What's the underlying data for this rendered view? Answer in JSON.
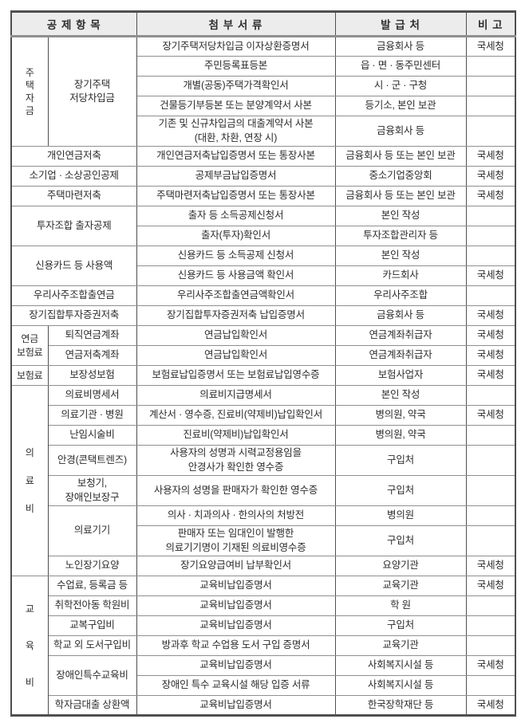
{
  "table": {
    "headers": {
      "deduction_items": "공 제 항 목",
      "attached_documents": "첨 부 서 류",
      "issuing_office": "발 급 처",
      "note": "비  고"
    },
    "colors": {
      "header_bg": "#ececec",
      "border_dark": "#4f4f4f",
      "border_light": "#8f8f8f",
      "text": "#2d2d2d"
    },
    "rows": [
      {
        "cells": [
          {
            "t": "주택자금",
            "type": "gv",
            "rs": 5,
            "v": "housing"
          },
          {
            "t": "장기주택\n저당차입금",
            "type": "i",
            "rs": 5
          },
          {
            "t": "장기주택저당차입금 이자상환증명서",
            "type": "d"
          },
          {
            "t": "금융회사 등",
            "type": "s"
          },
          {
            "t": "국세청",
            "type": "n"
          }
        ]
      },
      {
        "cells": [
          {
            "t": "주민등록표등본",
            "type": "d"
          },
          {
            "t": "읍 · 면 · 동주민센터",
            "type": "s"
          },
          {
            "t": "",
            "type": "n"
          }
        ]
      },
      {
        "cells": [
          {
            "t": "개별(공동)주택가격확인서",
            "type": "d"
          },
          {
            "t": "시 · 군 · 구청",
            "type": "s"
          },
          {
            "t": "",
            "type": "n"
          }
        ]
      },
      {
        "cells": [
          {
            "t": "건물등기부등본 또는 분양계약서 사본",
            "type": "d"
          },
          {
            "t": "등기소, 본인 보관",
            "type": "s"
          },
          {
            "t": "",
            "type": "n"
          }
        ]
      },
      {
        "cells": [
          {
            "t": "기존 및 신규차입금의 대출계약서 사본\n(대환, 차환, 연장 시)",
            "type": "d"
          },
          {
            "t": "금융회사 등",
            "type": "s"
          },
          {
            "t": "",
            "type": "n"
          }
        ]
      },
      {
        "cells": [
          {
            "t": "개인연금저축",
            "type": "f"
          },
          {
            "t": "개인연금저축납입증명서 또는 통장사본",
            "type": "d"
          },
          {
            "t": "금융회사 등 또는 본인 보관",
            "type": "s"
          },
          {
            "t": "국세청",
            "type": "n"
          }
        ]
      },
      {
        "cells": [
          {
            "t": "소기업 · 소상공인공제",
            "type": "f"
          },
          {
            "t": "공제부금납입증명서",
            "type": "d"
          },
          {
            "t": "중소기업중앙회",
            "type": "s"
          },
          {
            "t": "국세청",
            "type": "n"
          }
        ]
      },
      {
        "cells": [
          {
            "t": "주택마련저축",
            "type": "f"
          },
          {
            "t": "주택마련저축납입증명서 또는 통장사본",
            "type": "d"
          },
          {
            "t": "금융회사 등 또는 본인 보관",
            "type": "s"
          },
          {
            "t": "국세청",
            "type": "n"
          }
        ]
      },
      {
        "cells": [
          {
            "t": "투자조합 출자공제",
            "type": "f",
            "rs": 2
          },
          {
            "t": "출자 등 소득공제신청서",
            "type": "d"
          },
          {
            "t": "본인 작성",
            "type": "s"
          },
          {
            "t": "",
            "type": "n"
          }
        ]
      },
      {
        "cells": [
          {
            "t": "출자(투자)확인서",
            "type": "d"
          },
          {
            "t": "투자조합관리자 등",
            "type": "s"
          },
          {
            "t": "",
            "type": "n"
          }
        ]
      },
      {
        "cells": [
          {
            "t": "신용카드 등 사용액",
            "type": "f",
            "rs": 2
          },
          {
            "t": "신용카드 등 소득공제 신청서",
            "type": "d"
          },
          {
            "t": "본인 작성",
            "type": "s"
          },
          {
            "t": "",
            "type": "n"
          }
        ]
      },
      {
        "cells": [
          {
            "t": "신용카드 등 사용금액 확인서",
            "type": "d"
          },
          {
            "t": "카드회사",
            "type": "s"
          },
          {
            "t": "국세청",
            "type": "n"
          }
        ]
      },
      {
        "cells": [
          {
            "t": "우리사주조합출연금",
            "type": "f"
          },
          {
            "t": "우리사주조합출연금액확인서",
            "type": "d"
          },
          {
            "t": "우리사주조합",
            "type": "s"
          },
          {
            "t": "",
            "type": "n"
          }
        ]
      },
      {
        "cells": [
          {
            "t": "장기집합투자증권저축",
            "type": "f"
          },
          {
            "t": "장기집합투자증권저축 납입증명서",
            "type": "d"
          },
          {
            "t": "금융회사 등",
            "type": "s"
          },
          {
            "t": "국세청",
            "type": "n"
          }
        ]
      },
      {
        "cells": [
          {
            "t": "연금\n보험료",
            "type": "g",
            "rs": 2
          },
          {
            "t": "퇴직연금계좌",
            "type": "i"
          },
          {
            "t": "연금납입확인서",
            "type": "d"
          },
          {
            "t": "연금계좌취급자",
            "type": "s"
          },
          {
            "t": "국세청",
            "type": "n"
          }
        ]
      },
      {
        "cells": [
          {
            "t": "연금저축계좌",
            "type": "i"
          },
          {
            "t": "연금납입확인서",
            "type": "d"
          },
          {
            "t": "연금계좌취급자",
            "type": "s"
          },
          {
            "t": "국세청",
            "type": "n"
          }
        ]
      },
      {
        "cells": [
          {
            "t": "보험료",
            "type": "g"
          },
          {
            "t": "보장성보험",
            "type": "i"
          },
          {
            "t": "보험료납입증명서 또는 보험료납입영수증",
            "type": "d"
          },
          {
            "t": "보험사업자",
            "type": "s"
          },
          {
            "t": "국세청",
            "type": "n"
          }
        ]
      },
      {
        "cells": [
          {
            "t": "의료비",
            "type": "gv",
            "rs": 8,
            "v": "medical"
          },
          {
            "t": "의료비명세서",
            "type": "i"
          },
          {
            "t": "의료비지급명세서",
            "type": "d"
          },
          {
            "t": "본인 작성",
            "type": "s"
          },
          {
            "t": "",
            "type": "n"
          }
        ]
      },
      {
        "cells": [
          {
            "t": "의료기관 · 병원",
            "type": "i"
          },
          {
            "t": "계산서 · 영수증, 진료비(약제비)납입확인서",
            "type": "d"
          },
          {
            "t": "병의원, 약국",
            "type": "s"
          },
          {
            "t": "국세청",
            "type": "n"
          }
        ]
      },
      {
        "cells": [
          {
            "t": "난임시술비",
            "type": "i"
          },
          {
            "t": "진료비(약제비)납입확인서",
            "type": "d"
          },
          {
            "t": "병의원, 약국",
            "type": "s"
          },
          {
            "t": "",
            "type": "n"
          }
        ]
      },
      {
        "cells": [
          {
            "t": "안경(콘택트렌즈)",
            "type": "i"
          },
          {
            "t": "사용자의 성명과 시력교정용임을\n안경사가 확인한 영수증",
            "type": "d"
          },
          {
            "t": "구입처",
            "type": "s"
          },
          {
            "t": "",
            "type": "n"
          }
        ]
      },
      {
        "cells": [
          {
            "t": "보청기,\n장애인보장구",
            "type": "i"
          },
          {
            "t": "사용자의 성명을 판매자가 확인한 영수증",
            "type": "d"
          },
          {
            "t": "구입처",
            "type": "s"
          },
          {
            "t": "",
            "type": "n"
          }
        ]
      },
      {
        "cells": [
          {
            "t": "의료기기",
            "type": "i",
            "rs": 2
          },
          {
            "t": "의사 · 치과의사 · 한의사의 처방전",
            "type": "d"
          },
          {
            "t": "병의원",
            "type": "s"
          },
          {
            "t": "",
            "type": "n"
          }
        ]
      },
      {
        "cells": [
          {
            "t": "판매자 또는 임대인이 발행한\n의료기기명이 기재된 의료비영수증",
            "type": "d"
          },
          {
            "t": "구입처",
            "type": "s"
          },
          {
            "t": "",
            "type": "n"
          }
        ]
      },
      {
        "cells": [
          {
            "t": "노인장기요양",
            "type": "i"
          },
          {
            "t": "장기요양급여비 납부확인서",
            "type": "d"
          },
          {
            "t": "요양기관",
            "type": "s"
          },
          {
            "t": "국세청",
            "type": "n"
          }
        ]
      },
      {
        "cells": [
          {
            "t": "교육비",
            "type": "gv",
            "rs": 7,
            "v": "edu"
          },
          {
            "t": "수업료, 등록금 등",
            "type": "i"
          },
          {
            "t": "교육비납입증명서",
            "type": "d"
          },
          {
            "t": "교육기관",
            "type": "s"
          },
          {
            "t": "국세청",
            "type": "n"
          }
        ]
      },
      {
        "cells": [
          {
            "t": "취학전아동 학원비",
            "type": "i"
          },
          {
            "t": "교육비납입증명서",
            "type": "d"
          },
          {
            "t": "학  원",
            "type": "s"
          },
          {
            "t": "",
            "type": "n"
          }
        ]
      },
      {
        "cells": [
          {
            "t": "교복구입비",
            "type": "i"
          },
          {
            "t": "교육비납입증명서",
            "type": "d"
          },
          {
            "t": "구입처",
            "type": "s"
          },
          {
            "t": "",
            "type": "n"
          }
        ]
      },
      {
        "cells": [
          {
            "t": "학교 외 도서구입비",
            "type": "i"
          },
          {
            "t": "방과후 학교 수업용 도서 구입 증명서",
            "type": "d"
          },
          {
            "t": "교육기관",
            "type": "s"
          },
          {
            "t": "",
            "type": "n"
          }
        ]
      },
      {
        "cells": [
          {
            "t": "장애인특수교육비",
            "type": "i",
            "rs": 2
          },
          {
            "t": "교육비납입증명서",
            "type": "d"
          },
          {
            "t": "사회복지시설 등",
            "type": "s"
          },
          {
            "t": "국세청",
            "type": "n"
          }
        ]
      },
      {
        "cells": [
          {
            "t": "장애인 특수 교육시설 해당 입증 서류",
            "type": "d"
          },
          {
            "t": "사회복지시설 등",
            "type": "s"
          },
          {
            "t": "",
            "type": "n"
          }
        ]
      },
      {
        "cells": [
          {
            "t": "학자금대출 상환액",
            "type": "i"
          },
          {
            "t": "교육비납입증명서",
            "type": "d"
          },
          {
            "t": "한국장학재단 등",
            "type": "s"
          },
          {
            "t": "국세청",
            "type": "n"
          }
        ]
      }
    ]
  }
}
